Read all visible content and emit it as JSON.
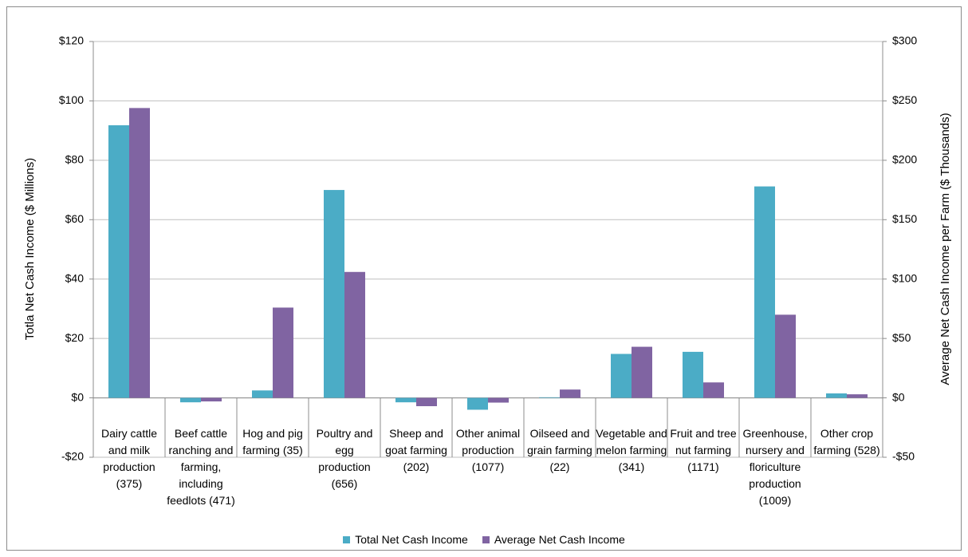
{
  "chart_data": {
    "type": "bar",
    "categories": [
      "Dairy cattle and milk production (375)",
      "Beef cattle ranching and farming, including feedlots (471)",
      "Hog and pig farming (35)",
      "Poultry and egg production (656)",
      "Sheep and goat farming (202)",
      "Other animal production (1077)",
      "Oilseed and grain farming (22)",
      "Vegetable and melon farming (341)",
      "Fruit and tree nut farming (1171)",
      "Greenhouse, nursery and floriculture production (1009)",
      "Other crop farming (528)"
    ],
    "series": [
      {
        "name": "Total Net Cash Income",
        "color": "#4bacc6",
        "values": [
          91.8,
          -1.5,
          2.5,
          70,
          -1.5,
          -4,
          0.2,
          14.8,
          15.5,
          71.2,
          1.5
        ]
      },
      {
        "name": "Average Net Cash Income",
        "color": "#8064a2",
        "axis": "y2",
        "values": [
          244,
          -3,
          76,
          106,
          -7,
          -4,
          7,
          43,
          13,
          70,
          3
        ]
      }
    ],
    "ylabel": "Totla Net Cash Income ($ Millions)",
    "y2label": "Average Net Cash Income per Farm ($ Thousands)",
    "ylim": [
      -20,
      120
    ],
    "yticks": [
      {
        "value": -20,
        "label": "-$20"
      },
      {
        "value": 0,
        "label": "$0"
      },
      {
        "value": 20,
        "label": "$20"
      },
      {
        "value": 40,
        "label": "$40"
      },
      {
        "value": 60,
        "label": "$60"
      },
      {
        "value": 80,
        "label": "$80"
      },
      {
        "value": 100,
        "label": "$100"
      },
      {
        "value": 120,
        "label": "$120"
      }
    ],
    "y2lim": [
      -50,
      300
    ],
    "y2ticks": [
      {
        "value": -50,
        "label": "-$50"
      },
      {
        "value": 0,
        "label": "$0"
      },
      {
        "value": 50,
        "label": "$50"
      },
      {
        "value": 100,
        "label": "$100"
      },
      {
        "value": 150,
        "label": "$150"
      },
      {
        "value": 200,
        "label": "$200"
      },
      {
        "value": 250,
        "label": "$250"
      },
      {
        "value": 300,
        "label": "$300"
      }
    ],
    "grid": true,
    "legend": "bottom"
  }
}
